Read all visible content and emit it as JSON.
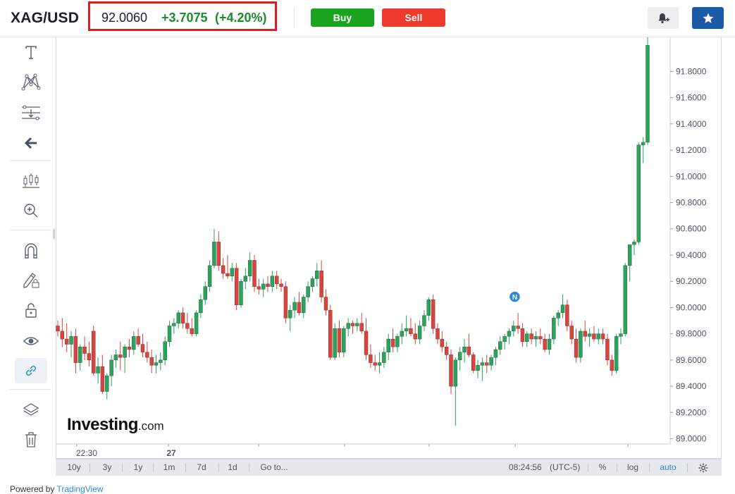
{
  "header": {
    "symbol": "XAG/USD",
    "price": "92.0060",
    "change": "+3.7075",
    "change_pct": "(+4.20%)",
    "buy_label": "Buy",
    "sell_label": "Sell"
  },
  "toolbar": {
    "icons": [
      "text-icon",
      "pattern-icon",
      "fib-icon",
      "back-arrow-icon",
      "chart-type-icon",
      "zoom-icon",
      "magnet-icon",
      "lock-draw-icon",
      "lock-icon",
      "eye-icon",
      "link-icon",
      "layers-icon",
      "trash-icon"
    ]
  },
  "bottom_bar": {
    "ranges": [
      "10y",
      "3y",
      "1y",
      "1m",
      "7d",
      "1d"
    ],
    "goto": "Go to...",
    "time": "08:24:56",
    "timezone": "(UTC-5)",
    "percent": "%",
    "log": "log",
    "auto": "auto"
  },
  "footer_left": "Powered by",
  "footer_link": "TradingView",
  "branding": {
    "main": "Investing",
    "suffix": ".com"
  },
  "colors": {
    "up": "#26a65b",
    "down": "#e0413b",
    "buy": "#1aa31e",
    "sell": "#ee3a2c",
    "star_bg": "#1b5aa6",
    "positive_text": "#1a8d2f",
    "highlight_box": "#e01b24"
  },
  "chart_data": {
    "type": "candlestick",
    "y_ticks": [
      "91.8000",
      "91.6000",
      "91.4000",
      "91.2000",
      "91.0000",
      "90.8000",
      "90.6000",
      "90.4000",
      "90.2000",
      "90.0000",
      "89.8000",
      "89.6000",
      "89.4000",
      "89.2000",
      "89.0000"
    ],
    "ylim": [
      88.96,
      92.06
    ],
    "x_labels": [
      "22:30",
      "27"
    ],
    "news_marker": "N",
    "candles": [
      [
        89.86,
        89.9,
        89.78,
        89.82
      ],
      [
        89.82,
        89.92,
        89.7,
        89.76
      ],
      [
        89.76,
        89.88,
        89.66,
        89.72
      ],
      [
        89.72,
        89.82,
        89.62,
        89.78
      ],
      [
        89.78,
        89.84,
        89.5,
        89.58
      ],
      [
        89.58,
        89.72,
        89.52,
        89.7
      ],
      [
        89.7,
        89.78,
        89.6,
        89.65
      ],
      [
        89.65,
        89.74,
        89.55,
        89.6
      ],
      [
        89.82,
        89.86,
        89.48,
        89.5
      ],
      [
        89.5,
        89.62,
        89.42,
        89.55
      ],
      [
        89.55,
        89.64,
        89.34,
        89.36
      ],
      [
        89.36,
        89.5,
        89.3,
        89.48
      ],
      [
        89.48,
        89.64,
        89.4,
        89.6
      ],
      [
        89.6,
        89.68,
        89.54,
        89.64
      ],
      [
        89.64,
        89.74,
        89.52,
        89.62
      ],
      [
        89.62,
        89.72,
        89.5,
        89.7
      ],
      [
        89.7,
        89.76,
        89.62,
        89.68
      ],
      [
        89.68,
        89.82,
        89.64,
        89.78
      ],
      [
        89.78,
        89.84,
        89.7,
        89.72
      ],
      [
        89.72,
        89.8,
        89.62,
        89.66
      ],
      [
        89.66,
        89.74,
        89.58,
        89.62
      ],
      [
        89.62,
        89.68,
        89.5,
        89.56
      ],
      [
        89.56,
        89.64,
        89.5,
        89.58
      ],
      [
        89.58,
        89.66,
        89.52,
        89.6
      ],
      [
        89.6,
        89.78,
        89.56,
        89.74
      ],
      [
        89.74,
        89.9,
        89.7,
        89.86
      ],
      [
        89.86,
        89.92,
        89.8,
        89.88
      ],
      [
        89.88,
        89.98,
        89.84,
        89.96
      ],
      [
        89.96,
        90.0,
        89.84,
        89.88
      ],
      [
        89.88,
        89.96,
        89.8,
        89.84
      ],
      [
        89.84,
        89.92,
        89.78,
        89.8
      ],
      [
        89.8,
        89.98,
        89.78,
        89.96
      ],
      [
        89.96,
        90.1,
        89.92,
        90.06
      ],
      [
        90.06,
        90.2,
        90.02,
        90.16
      ],
      [
        90.16,
        90.36,
        90.12,
        90.32
      ],
      [
        90.32,
        90.6,
        90.3,
        90.5
      ],
      [
        90.5,
        90.58,
        90.28,
        90.32
      ],
      [
        90.32,
        90.38,
        90.22,
        90.26
      ],
      [
        90.26,
        90.4,
        90.22,
        90.24
      ],
      [
        90.24,
        90.34,
        90.2,
        90.3
      ],
      [
        90.3,
        90.34,
        89.98,
        90.02
      ],
      [
        90.02,
        90.22,
        90.0,
        90.2
      ],
      [
        90.2,
        90.3,
        90.14,
        90.24
      ],
      [
        90.24,
        90.42,
        90.2,
        90.36
      ],
      [
        90.36,
        90.4,
        90.12,
        90.16
      ],
      [
        90.16,
        90.22,
        90.1,
        90.14
      ],
      [
        90.14,
        90.22,
        90.08,
        90.18
      ],
      [
        90.18,
        90.24,
        90.12,
        90.16
      ],
      [
        90.16,
        90.28,
        90.12,
        90.24
      ],
      [
        90.24,
        90.28,
        90.14,
        90.18
      ],
      [
        90.18,
        90.22,
        90.12,
        90.16
      ],
      [
        90.16,
        90.2,
        89.88,
        89.92
      ],
      [
        89.92,
        90.02,
        89.82,
        89.98
      ],
      [
        89.98,
        90.08,
        89.92,
        90.04
      ],
      [
        90.04,
        90.12,
        89.94,
        89.96
      ],
      [
        89.96,
        90.1,
        89.92,
        90.08
      ],
      [
        90.08,
        90.2,
        90.04,
        90.16
      ],
      [
        90.16,
        90.24,
        90.12,
        90.22
      ],
      [
        90.22,
        90.34,
        90.16,
        90.28
      ],
      [
        90.28,
        90.36,
        90.04,
        90.08
      ],
      [
        90.08,
        90.14,
        89.94,
        89.98
      ],
      [
        89.98,
        90.02,
        89.6,
        89.62
      ],
      [
        89.62,
        89.88,
        89.6,
        89.84
      ],
      [
        89.84,
        89.9,
        89.62,
        89.66
      ],
      [
        89.66,
        89.86,
        89.62,
        89.84
      ],
      [
        89.84,
        89.92,
        89.78,
        89.88
      ],
      [
        89.88,
        89.9,
        89.8,
        89.86
      ],
      [
        89.86,
        89.92,
        89.82,
        89.88
      ],
      [
        89.88,
        89.96,
        89.8,
        89.82
      ],
      [
        89.82,
        89.92,
        89.6,
        89.64
      ],
      [
        89.64,
        89.72,
        89.54,
        89.58
      ],
      [
        89.58,
        89.64,
        89.52,
        89.56
      ],
      [
        89.56,
        89.66,
        89.5,
        89.58
      ],
      [
        89.58,
        89.7,
        89.54,
        89.66
      ],
      [
        89.66,
        89.8,
        89.6,
        89.76
      ],
      [
        89.76,
        89.84,
        89.66,
        89.7
      ],
      [
        89.7,
        89.8,
        89.66,
        89.78
      ],
      [
        89.78,
        89.88,
        89.72,
        89.82
      ],
      [
        89.82,
        89.94,
        89.78,
        89.84
      ],
      [
        89.84,
        89.92,
        89.78,
        89.8
      ],
      [
        89.8,
        89.88,
        89.72,
        89.76
      ],
      [
        89.76,
        89.9,
        89.72,
        89.86
      ],
      [
        89.86,
        89.98,
        89.82,
        89.94
      ],
      [
        89.94,
        90.08,
        89.9,
        90.06
      ],
      [
        90.06,
        90.1,
        89.8,
        89.84
      ],
      [
        89.84,
        89.88,
        89.72,
        89.76
      ],
      [
        89.76,
        89.82,
        89.66,
        89.7
      ],
      [
        89.7,
        89.74,
        89.6,
        89.64
      ],
      [
        89.64,
        89.68,
        89.34,
        89.4
      ],
      [
        89.4,
        89.62,
        89.1,
        89.6
      ],
      [
        89.6,
        89.7,
        89.52,
        89.66
      ],
      [
        89.66,
        89.76,
        89.58,
        89.7
      ],
      [
        89.7,
        89.8,
        89.62,
        89.64
      ],
      [
        89.64,
        89.66,
        89.5,
        89.52
      ],
      [
        89.52,
        89.6,
        89.46,
        89.56
      ],
      [
        89.56,
        89.62,
        89.44,
        89.58
      ],
      [
        89.58,
        89.64,
        89.5,
        89.56
      ],
      [
        89.56,
        89.64,
        89.52,
        89.62
      ],
      [
        89.62,
        89.7,
        89.56,
        89.68
      ],
      [
        89.68,
        89.78,
        89.64,
        89.74
      ],
      [
        89.74,
        89.8,
        89.68,
        89.78
      ],
      [
        89.78,
        89.84,
        89.72,
        89.82
      ],
      [
        89.82,
        89.9,
        89.78,
        89.86
      ],
      [
        89.86,
        89.96,
        89.8,
        89.84
      ],
      [
        89.84,
        89.88,
        89.7,
        89.74
      ],
      [
        89.74,
        89.82,
        89.7,
        89.8
      ],
      [
        89.8,
        89.84,
        89.72,
        89.76
      ],
      [
        89.76,
        89.82,
        89.7,
        89.78
      ],
      [
        89.78,
        89.84,
        89.72,
        89.76
      ],
      [
        89.76,
        89.8,
        89.66,
        89.68
      ],
      [
        89.68,
        89.8,
        89.64,
        89.76
      ],
      [
        89.76,
        89.94,
        89.72,
        89.92
      ],
      [
        89.92,
        89.98,
        89.86,
        89.96
      ],
      [
        89.96,
        90.1,
        89.92,
        90.02
      ],
      [
        90.02,
        90.06,
        89.82,
        89.86
      ],
      [
        89.86,
        89.9,
        89.72,
        89.76
      ],
      [
        89.76,
        89.84,
        89.58,
        89.62
      ],
      [
        89.62,
        89.84,
        89.58,
        89.82
      ],
      [
        89.82,
        89.9,
        89.74,
        89.78
      ],
      [
        89.78,
        89.84,
        89.7,
        89.8
      ],
      [
        89.8,
        89.86,
        89.74,
        89.76
      ],
      [
        89.76,
        89.84,
        89.72,
        89.8
      ],
      [
        89.8,
        89.84,
        89.72,
        89.76
      ],
      [
        89.76,
        89.8,
        89.56,
        89.6
      ],
      [
        89.6,
        89.64,
        89.48,
        89.52
      ],
      [
        89.52,
        89.8,
        89.5,
        89.78
      ],
      [
        89.78,
        89.84,
        89.72,
        89.8
      ],
      [
        89.8,
        90.34,
        89.78,
        90.32
      ],
      [
        90.32,
        90.48,
        90.2,
        90.48
      ],
      [
        90.48,
        90.52,
        90.4,
        90.5
      ],
      [
        90.5,
        91.26,
        90.48,
        91.24
      ],
      [
        91.24,
        91.3,
        91.1,
        91.26
      ],
      [
        91.26,
        92.06,
        91.24,
        92.0
      ]
    ]
  }
}
